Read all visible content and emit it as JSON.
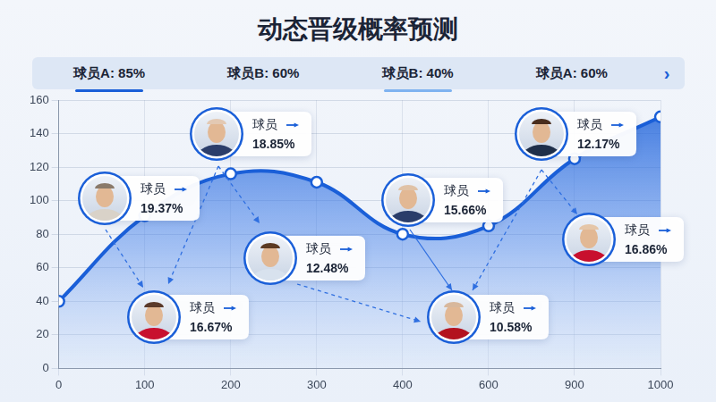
{
  "title": "动态晋级概率预测",
  "tabs": [
    {
      "text": "球员A: 85%"
    },
    {
      "text": "球员B: 60%"
    },
    {
      "text": "球员B: 40%"
    },
    {
      "text": "球员A: 60%"
    }
  ],
  "next": "›",
  "chart_data": {
    "type": "area",
    "categories": [
      "0",
      "100",
      "200",
      "300",
      "400",
      "600",
      "900",
      "1000"
    ],
    "values": [
      40,
      91,
      116,
      111,
      80,
      85,
      125,
      150
    ],
    "color": "#1a5fd8",
    "marker": "circle",
    "ylim": [
      0,
      160
    ],
    "yticks": [
      0,
      20,
      40,
      60,
      80,
      100,
      120,
      140,
      160
    ],
    "grid": true,
    "annotations": [
      {
        "label": "球员",
        "value": 19.37,
        "value_label": "19.37%"
      },
      {
        "label": "球员",
        "value": 18.85,
        "value_label": "18.85%"
      },
      {
        "label": "球员",
        "value": 16.67,
        "value_label": "16.67%"
      },
      {
        "label": "球员",
        "value": 12.48,
        "value_label": "12.48%"
      },
      {
        "label": "球员",
        "value": 15.66,
        "value_label": "15.66%"
      },
      {
        "label": "球员",
        "value": 10.58,
        "value_label": "10.58%"
      },
      {
        "label": "球员",
        "value": 12.17,
        "value_label": "12.17%"
      },
      {
        "label": "球员",
        "value": 16.86,
        "value_label": "16.86%"
      }
    ]
  }
}
